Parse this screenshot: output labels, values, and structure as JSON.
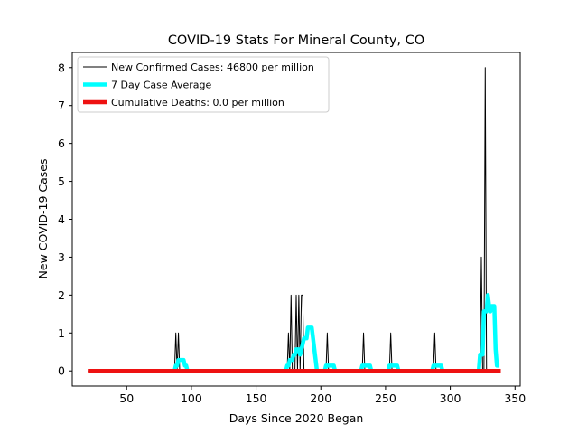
{
  "chart_data": {
    "type": "line",
    "title": "COVID-19 Stats For Mineral County, CO",
    "xlabel": "Days Since 2020 Began",
    "ylabel": "New COVID-19 Cases",
    "xlim": [
      8,
      354
    ],
    "ylim": [
      -0.4,
      8.4
    ],
    "xticks": [
      50,
      100,
      150,
      200,
      250,
      300,
      350
    ],
    "yticks": [
      0,
      1,
      2,
      3,
      4,
      5,
      6,
      7,
      8
    ],
    "grid": false,
    "legend_position": "top-left",
    "series": [
      {
        "name": "New Confirmed Cases: 46800 per million",
        "color": "#000000",
        "x": [
          20,
          87,
          88,
          89,
          90,
          91,
          174,
          175,
          176,
          177,
          178,
          179,
          180,
          181,
          182,
          183,
          184,
          185,
          186,
          187,
          188,
          189,
          190,
          191,
          204,
          205,
          206,
          232,
          233,
          234,
          253,
          254,
          255,
          287,
          288,
          289,
          323,
          324,
          325,
          326,
          327,
          328,
          329,
          330,
          331,
          332,
          333,
          334,
          339
        ],
        "y": [
          0,
          0,
          1,
          0,
          1,
          0,
          0,
          1,
          0,
          2,
          0,
          0,
          0,
          2,
          0,
          2,
          0,
          2,
          2,
          0,
          0,
          0,
          0,
          0,
          0,
          1,
          0,
          0,
          1,
          0,
          0,
          1,
          0,
          0,
          1,
          0,
          0,
          3,
          0,
          0,
          8,
          0,
          0,
          0,
          0,
          0,
          0,
          0,
          0
        ]
      },
      {
        "name": "7 Day Case Average",
        "color": "#00ffff",
        "x": [
          86,
          87,
          88,
          89,
          90,
          91,
          92,
          93,
          94,
          95,
          96,
          97,
          172,
          173,
          174,
          175,
          176,
          177,
          178,
          179,
          180,
          181,
          182,
          183,
          184,
          185,
          186,
          187,
          188,
          189,
          190,
          191,
          192,
          193,
          194,
          195,
          196,
          197,
          203,
          204,
          205,
          206,
          207,
          208,
          209,
          210,
          211,
          231,
          232,
          233,
          234,
          235,
          236,
          237,
          238,
          239,
          252,
          253,
          254,
          255,
          256,
          257,
          258,
          259,
          260,
          286,
          287,
          288,
          289,
          290,
          291,
          292,
          293,
          294,
          322,
          323,
          324,
          325,
          326,
          327,
          328,
          329,
          330,
          331,
          332,
          333,
          334,
          335,
          336,
          337,
          338
        ],
        "y": [
          0,
          0,
          0.14,
          0.14,
          0.29,
          0.29,
          0.29,
          0.29,
          0.29,
          0.14,
          0.14,
          0,
          0,
          0,
          0.14,
          0.14,
          0.29,
          0.29,
          0.29,
          0.43,
          0.43,
          0.57,
          0.57,
          0.57,
          0.43,
          0.57,
          0.71,
          0.86,
          0.86,
          0.86,
          1.14,
          1.14,
          1.14,
          1.14,
          0.86,
          0.57,
          0.29,
          0,
          0,
          0.14,
          0.14,
          0.14,
          0.14,
          0.14,
          0.14,
          0.14,
          0,
          0,
          0.14,
          0.14,
          0.14,
          0.14,
          0.14,
          0.14,
          0.14,
          0,
          0,
          0.14,
          0.14,
          0.14,
          0.14,
          0.14,
          0.14,
          0.14,
          0,
          0,
          0.14,
          0.14,
          0.14,
          0.14,
          0.14,
          0.14,
          0.14,
          0,
          0,
          0.43,
          0.43,
          0.43,
          1.57,
          1.57,
          1.57,
          2.0,
          1.71,
          1.57,
          1.71,
          1.71,
          1.71,
          0.57,
          0.14,
          0.14,
          0.14
        ]
      },
      {
        "name": "Cumulative Deaths: 0.0 per million",
        "color": "#ee1111",
        "x": [
          20,
          339
        ],
        "y": [
          0,
          0
        ]
      }
    ]
  }
}
